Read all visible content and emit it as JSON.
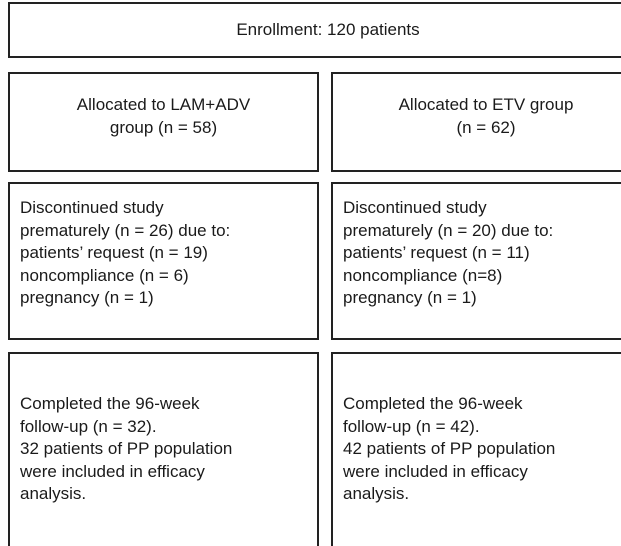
{
  "enrollment": "Enrollment: 120 patients",
  "groups": [
    {
      "allocation": [
        "Allocated to LAM+ADV",
        "group (n = 58)"
      ],
      "discontinued": [
        "Discontinued study",
        "prematurely (n = 26) due to:",
        "patients’ request (n = 19)",
        "noncompliance (n = 6)",
        "pregnancy (n = 1)"
      ],
      "completed": [
        "Completed the 96-week",
        "follow-up (n = 32).",
        "32 patients of PP population",
        "were included in efficacy",
        "analysis."
      ]
    },
    {
      "allocation": [
        "Allocated to ETV group",
        "(n = 62)"
      ],
      "discontinued": [
        "Discontinued study",
        "prematurely (n = 20) due to:",
        "patients’ request (n = 11)",
        "noncompliance (n=8)",
        "pregnancy (n = 1)"
      ],
      "completed": [
        "Completed the 96-week",
        "follow-up (n = 42).",
        "42 patients of PP population",
        "were included in efficacy",
        "analysis."
      ]
    }
  ]
}
